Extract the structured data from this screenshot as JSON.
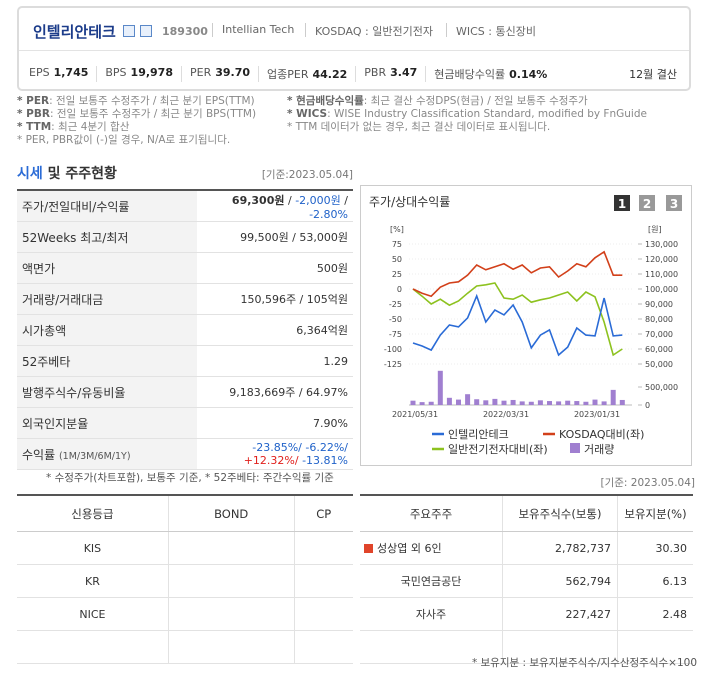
{
  "header": {
    "name": "인텔리안테크",
    "code": "189300",
    "english_name": "Intellian Tech",
    "market": "KOSDAQ : 일반전기전자",
    "wics": "WICS : 통신장비"
  },
  "stats": [
    {
      "label": "EPS",
      "value": "1,745"
    },
    {
      "label": "BPS",
      "value": "19,978"
    },
    {
      "label": "PER",
      "value": "39.70"
    },
    {
      "label": "업종PER",
      "value": "44.22"
    },
    {
      "label": "PBR",
      "value": "3.47"
    },
    {
      "label": "현금배당수익률",
      "value": "0.14%"
    }
  ],
  "settlement": "12월 결산",
  "notes": {
    "left": [
      {
        "term": "* PER",
        "text": ": 전일 보통주 수정주가 / 최근 분기 EPS(TTM)"
      },
      {
        "term": "* PBR",
        "text": ": 전일 보통주 수정주가 / 최근 분기 BPS(TTM)"
      },
      {
        "term": "* TTM",
        "text": ": 최근 4분기 합산"
      },
      {
        "term": "",
        "text": "* PER, PBR값이 (-)일 경우, N/A로 표기됩니다."
      }
    ],
    "right": [
      {
        "term": "* 현금배당수익률",
        "text": ": 최근 결산 수정DPS(현금) / 전일 보통주 수정주가"
      },
      {
        "term": "* WICS",
        "text": ": WISE Industry Classification Standard, modified by FnGuide"
      },
      {
        "term": "",
        "text": "* TTM 데이터가 없는 경우, 최근 결산 데이터로 표시됩니다."
      }
    ]
  },
  "market_summary": {
    "title_highlight": "시세",
    "title_rest": "및 주주현황",
    "date": "[기준:2023.05.04]",
    "rows": [
      {
        "label": "주가/전일대비/수익률",
        "parts": [
          {
            "text": "69,300원",
            "tone": "bold"
          },
          {
            "text": " / ",
            "tone": "plain"
          },
          {
            "text": "-2,000원",
            "tone": "down"
          },
          {
            "text": " / ",
            "tone": "plain"
          },
          {
            "text": "-2.80%",
            "tone": "down"
          }
        ]
      },
      {
        "label": "52Weeks 최고/최저",
        "value": "99,500원 / 53,000원"
      },
      {
        "label": "액면가",
        "value": "500원"
      },
      {
        "label": "거래량/거래대금",
        "value": "150,596주 / 105억원"
      },
      {
        "label": "시가총액",
        "value": "6,364억원"
      },
      {
        "label": "52주베타",
        "value": "1.29"
      },
      {
        "label": "발행주식수/유동비율",
        "value": "9,183,669주 / 64.97%"
      },
      {
        "label": "외국인지분율",
        "value": "7.90%"
      },
      {
        "label": "수익률",
        "sub": "(1M/3M/6M/1Y)",
        "parts": [
          {
            "text": "-23.85%/ ",
            "tone": "down"
          },
          {
            "text": "-6.22%/ ",
            "tone": "down"
          },
          {
            "text": "+12.32%/ ",
            "tone": "up"
          },
          {
            "text": "-13.81%",
            "tone": "down"
          }
        ]
      }
    ],
    "footnote": "* 수정주가(차트포함), 보통주 기준, * 52주베타: 주간수익률 기준"
  },
  "price_chart": {
    "type": "line",
    "title": "주가/상대수익률",
    "buttons": [
      "1",
      "2",
      "3"
    ],
    "y_label": "[%]",
    "y2_label": "[원]",
    "categories": [
      "2021/05/31",
      null,
      null,
      null,
      null,
      null,
      null,
      null,
      null,
      null,
      "2022/03/31",
      null,
      null,
      null,
      null,
      null,
      null,
      null,
      null,
      null,
      "2023/01/31",
      null,
      null,
      null
    ],
    "ylim": [
      -125,
      75
    ],
    "yticks": [
      75,
      50,
      25,
      0,
      -25,
      -50,
      -75,
      -100,
      -125
    ],
    "y2lim": [
      50000,
      130000
    ],
    "y2ticks": [
      {
        "value": 130000,
        "label": "130,000"
      },
      {
        "value": 120000,
        "label": "120,000"
      },
      {
        "value": 110000,
        "label": "110,000"
      },
      {
        "value": 100000,
        "label": "100,000"
      },
      {
        "value": 90000,
        "label": "90,000"
      },
      {
        "value": 80000,
        "label": "80,000"
      },
      {
        "value": 70000,
        "label": "70,000"
      },
      {
        "value": 60000,
        "label": "60,000"
      },
      {
        "value": 50000,
        "label": "50,000"
      }
    ],
    "series": [
      {
        "name": "인텔리안테크",
        "color": "#2a6bd6",
        "axis": "y2",
        "values": [
          64000,
          62000,
          59300,
          69300,
          76000,
          74700,
          80700,
          95300,
          78000,
          86000,
          82700,
          89300,
          78000,
          60700,
          69300,
          72700,
          56000,
          61300,
          74000,
          69300,
          68700,
          94000,
          68700,
          69300
        ]
      },
      {
        "name": "KOSDAQ대비(좌)",
        "color": "#d2401a",
        "values": [
          0,
          -7,
          -12,
          3,
          10,
          12,
          23,
          40,
          32,
          37,
          42,
          33,
          40,
          27,
          35,
          37,
          20,
          30,
          42,
          37,
          52,
          62,
          23,
          23
        ]
      },
      {
        "name": "일반전기전자대비(좌)",
        "color": "#8dc21f",
        "values": [
          0,
          -12,
          -25,
          -17,
          -27,
          -20,
          -7,
          5,
          7,
          10,
          -15,
          -17,
          -10,
          -22,
          -18,
          -15,
          -10,
          -5,
          -20,
          -5,
          -13,
          -55,
          -110,
          -100
        ]
      }
    ],
    "volume": {
      "name": "거래량",
      "color": "#a07fd0",
      "ylim": [
        0,
        1000000
      ],
      "yticks": [
        {
          "value": 500000,
          "label": "500,000"
        },
        0
      ],
      "values": [
        120000,
        80000,
        90000,
        950000,
        200000,
        150000,
        300000,
        160000,
        130000,
        170000,
        120000,
        140000,
        100000,
        90000,
        130000,
        110000,
        100000,
        120000,
        110000,
        90000,
        150000,
        100000,
        420000,
        140000
      ]
    }
  },
  "shareholder_date": "[기준: 2023.05.04]",
  "credit": {
    "headers": [
      "신용등급",
      "BOND",
      "CP"
    ],
    "rows": [
      "KIS",
      "KR",
      "NICE"
    ]
  },
  "shareholders": {
    "headers": [
      "주요주주",
      "보유주식수(보통)",
      "보유지분(%)"
    ],
    "rows": [
      [
        "성상엽 외 6인",
        "2,782,737",
        "30.30"
      ],
      [
        "국민연금공단",
        "562,794",
        "6.13"
      ],
      [
        "자사주",
        "227,427",
        "2.48"
      ]
    ],
    "footnote": "* 보유지분 : 보유지분주식수/지수산정주식수×100"
  }
}
